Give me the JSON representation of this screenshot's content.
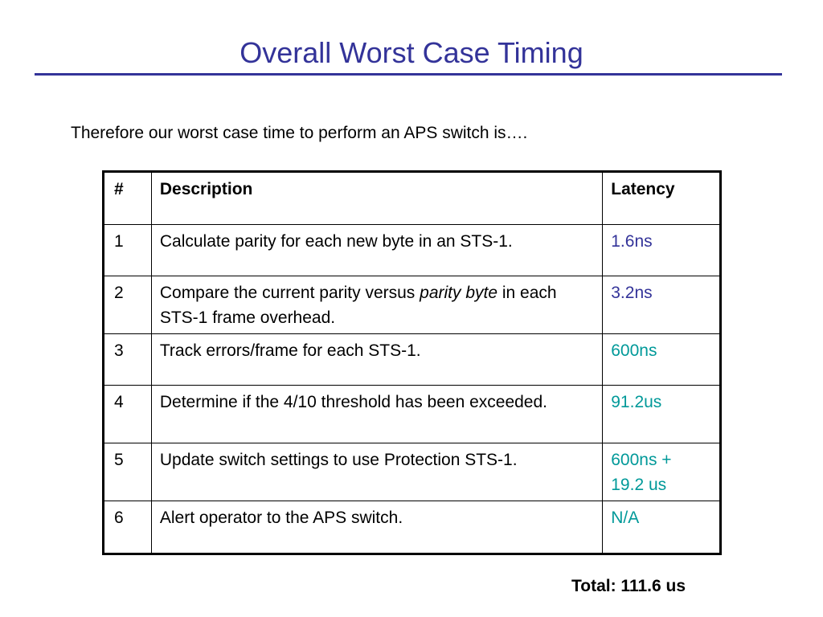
{
  "slide": {
    "title": "Overall Worst Case Timing",
    "intro": "Therefore our worst case time to perform an APS switch is….",
    "total": "Total: 111.6 us"
  },
  "table": {
    "headers": {
      "num": "#",
      "desc": "Description",
      "lat": "Latency"
    },
    "rows": [
      {
        "num": "1",
        "desc": "Calculate parity for each new byte in an STS-1.",
        "lat_line1": "1.6ns",
        "lat_color": "#333399"
      },
      {
        "num": "2",
        "desc_pre": "Compare the current parity versus ",
        "desc_em": "parity byte",
        "desc_post": " in each STS-1 frame overhead.",
        "lat_line1": "3.2ns",
        "lat_color": "#333399"
      },
      {
        "num": "3",
        "desc": "Track errors/frame for each STS-1.",
        "lat_line1": "600ns",
        "lat_color": "#009999"
      },
      {
        "num": "4",
        "desc": "Determine if the 4/10 threshold has been exceeded.",
        "lat_line1": "91.2us",
        "lat_color": "#009999"
      },
      {
        "num": "5",
        "desc": "Update switch settings to use Protection STS-1.",
        "lat_line1": "600ns +",
        "lat_line2": "19.2 us",
        "lat_color": "#009999"
      },
      {
        "num": "6",
        "desc": "Alert operator to the APS switch.",
        "lat_line1": "N/A",
        "lat_color": "#009999"
      }
    ]
  }
}
